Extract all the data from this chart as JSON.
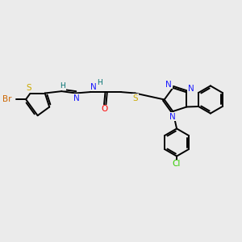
{
  "background_color": "#ebebeb",
  "atom_colors": {
    "C": "#000000",
    "N": "#1a1aff",
    "O": "#ff0000",
    "S": "#ccaa00",
    "Br": "#cc6600",
    "Cl": "#33cc00",
    "H": "#007070"
  },
  "figsize": [
    3.0,
    3.0
  ],
  "dpi": 100,
  "xlim": [
    0,
    10
  ],
  "ylim": [
    0,
    10
  ]
}
